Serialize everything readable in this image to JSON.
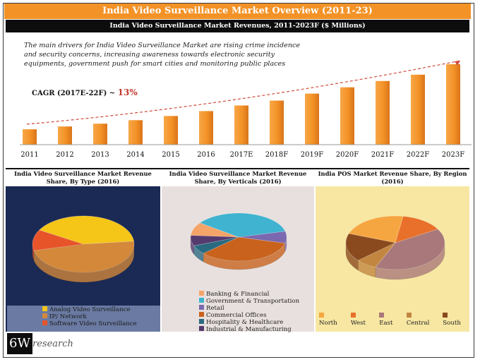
{
  "header": {
    "title": "India Video Surveillance Market Overview (2011-23)",
    "subtitle": "India Video Surveillance Market Revenues, 2011-2023F ($ Millions)"
  },
  "drivers_text": "The main drivers for India Video Surveillance Market are rising crime incidence and security concerns, increasing awareness towards electronic security equipments, government push for smart cities and monitoring public places",
  "cagr": {
    "label": "CAGR (2017E-22F) ~",
    "value": "13%"
  },
  "chart_data": [
    {
      "type": "bar",
      "title": "India Video Surveillance Market Revenues, 2011-2023F ($ Millions)",
      "categories": [
        "2011",
        "2012",
        "2013",
        "2014",
        "2015",
        "2016",
        "2017E",
        "2018F",
        "2019F",
        "2020F",
        "2021F",
        "2022F",
        "2023F"
      ],
      "values": [
        22,
        26,
        30,
        35,
        41,
        48,
        56,
        63,
        73,
        82,
        91,
        100,
        115
      ],
      "color": "#f39226"
    },
    {
      "type": "pie",
      "title": "India Video Surveillance Market Revenue Share, By Type (2016)",
      "labels": [
        "Analog Video Surveillance",
        "IP/ Network",
        "Software Video Surveillance"
      ],
      "values": [
        40,
        48,
        12
      ],
      "colors": [
        "#f5c518",
        "#d4883a",
        "#e8542a"
      ]
    },
    {
      "type": "pie",
      "title": "India Video Surveillance Market Revenue Share, By Verticals (2016)",
      "labels": [
        "Banking & Financial",
        "Government & Transportation",
        "Retail",
        "Commercial Offices",
        "Hospitality & Healthcare",
        "Industrial & Manufacturing"
      ],
      "values": [
        9,
        36,
        8,
        34,
        6,
        7
      ],
      "colors": [
        "#f4a468",
        "#3fb3d0",
        "#7a68b0",
        "#c8621c",
        "#2a6a80",
        "#553a6e"
      ]
    },
    {
      "type": "pie",
      "title": "India POS Market Revenue Share, By Region (2016)",
      "labels": [
        "North",
        "West",
        "East",
        "Central",
        "South"
      ],
      "values": [
        22,
        14,
        40,
        7,
        17
      ],
      "colors": [
        "#f6a640",
        "#e8702a",
        "#a8787a",
        "#c28640",
        "#8a4a1e"
      ]
    }
  ],
  "logo": {
    "mark": "6W",
    "text": "research"
  }
}
